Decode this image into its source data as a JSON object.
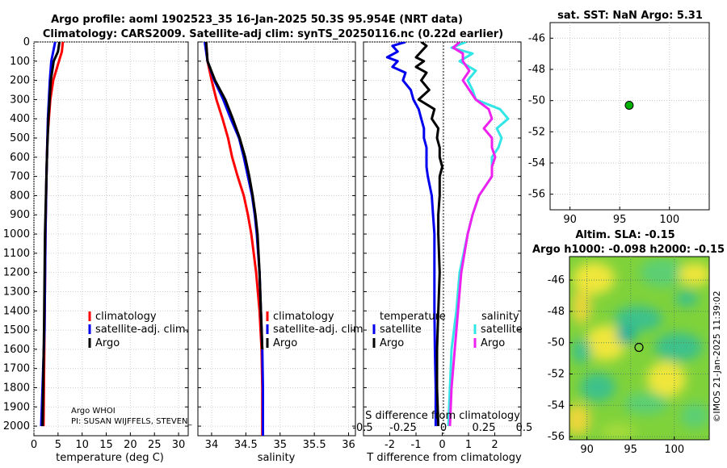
{
  "header": {
    "title_line1": "Argo profile: aoml 1902523_35 16-Jan-2025 50.3S 95.954E (NRT data)",
    "title_line2": "Climatology: CARS2009. Satellite-adj clim: synTS_20250116.nc (0.22d earlier)"
  },
  "sst_title": "sat. SST: NaN Argo: 5.31",
  "altim_title1": "Altim. SLA: -0.15",
  "altim_title2": "Argo h1000: -0.098 h2000: -0.15",
  "credit": "©IMOS 21-Jan-2025 11:39:02",
  "argo_info": {
    "line1": "Argo WHOI",
    "line2": "PI: SUSAN WIJFFELS, STEVEN_"
  },
  "legends": {
    "climatology": "climatology",
    "satellite_adj": "satellite-adj. clim.",
    "argo": "Argo",
    "temperature_hdr": "temperature",
    "salinity_hdr": "salinity",
    "satellite": "satellite"
  },
  "colors": {
    "climatology": "#ff0000",
    "satellite": "#0000ee",
    "argo": "#000000",
    "sal_satellite": "#33e6e6",
    "sal_argo": "#ee22ee",
    "argo_dot": "#00b000"
  },
  "chart_data": [
    {
      "type": "line",
      "name": "temperature",
      "xlabel": "temperature (deg C)",
      "ylabel": "",
      "xlim": [
        0,
        32
      ],
      "ylim": [
        2050,
        0
      ],
      "xticks": [
        0,
        5,
        10,
        15,
        20,
        25,
        30
      ],
      "yticks": [
        0,
        100,
        200,
        300,
        400,
        500,
        600,
        700,
        800,
        900,
        1000,
        1100,
        1200,
        1300,
        1400,
        1500,
        1600,
        1700,
        1800,
        1900,
        2000
      ],
      "series": [
        {
          "name": "climatology",
          "depth": [
            0,
            50,
            100,
            200,
            300,
            400,
            500,
            700,
            1000,
            1500,
            2000
          ],
          "values": [
            6.0,
            5.8,
            5.2,
            4.0,
            3.4,
            3.1,
            2.8,
            2.6,
            2.4,
            2.2,
            2.0
          ]
        },
        {
          "name": "satellite-adj. clim.",
          "depth": [
            0,
            50,
            100,
            200,
            400,
            700,
            1000,
            1500,
            2000
          ],
          "values": [
            4.4,
            4.0,
            3.6,
            3.3,
            2.9,
            2.6,
            2.4,
            2.2,
            1.5
          ]
        },
        {
          "name": "Argo",
          "depth": [
            0,
            50,
            100,
            200,
            400,
            600,
            800,
            1000,
            1500,
            2000
          ],
          "values": [
            5.3,
            5.0,
            4.1,
            3.5,
            3.0,
            2.7,
            2.5,
            2.3,
            2.1,
            1.8
          ]
        }
      ]
    },
    {
      "type": "line",
      "name": "salinity",
      "xlabel": "salinity",
      "xlim": [
        33.8,
        36.1
      ],
      "ylim": [
        2050,
        0
      ],
      "xticks": [
        34,
        34.5,
        35,
        35.5,
        36
      ],
      "series": [
        {
          "name": "climatology",
          "depth": [
            0,
            100,
            200,
            300,
            400,
            500,
            600,
            700,
            800,
            900,
            1000,
            1200,
            1400,
            1600,
            1800,
            2050
          ],
          "values": [
            33.92,
            33.94,
            34.0,
            34.07,
            34.16,
            34.24,
            34.3,
            34.38,
            34.47,
            34.53,
            34.58,
            34.65,
            34.7,
            34.73,
            34.74,
            34.74
          ]
        },
        {
          "name": "satellite-adj. clim.",
          "depth": [
            0,
            100,
            200,
            300,
            400,
            500,
            600,
            700,
            800,
            900,
            1000,
            1200,
            1400,
            1600,
            1800,
            2050
          ],
          "values": [
            33.9,
            33.94,
            34.04,
            34.17,
            34.28,
            34.4,
            34.47,
            34.53,
            34.59,
            34.63,
            34.66,
            34.7,
            34.72,
            34.74,
            34.75,
            34.75
          ]
        },
        {
          "name": "Argo",
          "depth": [
            0,
            100,
            200,
            300,
            400,
            500,
            600,
            700,
            800,
            900,
            1000,
            1200,
            1400,
            1600
          ],
          "values": [
            33.92,
            33.94,
            34.05,
            34.2,
            34.31,
            34.41,
            34.49,
            34.55,
            34.6,
            34.64,
            34.67,
            34.7,
            34.72,
            34.74
          ]
        }
      ]
    },
    {
      "type": "line",
      "name": "difference",
      "xlabel": "T difference from climatology",
      "xlabel_top": "S difference from climatology",
      "xlim": [
        -3,
        3
      ],
      "ylim": [
        2050,
        0
      ],
      "xticks": [
        -2,
        -1,
        0,
        1,
        2
      ],
      "sal_xticks": [
        -0.5,
        -0.25,
        0,
        0.25,
        0.5
      ],
      "series": [
        {
          "name": "temperature satellite",
          "depth": [
            0,
            20,
            50,
            80,
            100,
            130,
            160,
            200,
            250,
            300,
            350,
            400,
            450,
            500,
            550,
            600,
            650,
            700,
            800,
            900,
            1000,
            1200,
            1400,
            1600,
            1800,
            2000
          ],
          "values": [
            -1.4,
            -1.9,
            -1.7,
            -2.1,
            -1.7,
            -1.9,
            -1.4,
            -1.5,
            -1.2,
            -1.1,
            -0.9,
            -0.8,
            -0.7,
            -0.7,
            -0.6,
            -0.6,
            -0.6,
            -0.55,
            -0.4,
            -0.35,
            -0.3,
            -0.3,
            -0.3,
            -0.28,
            -0.25,
            -0.25
          ]
        },
        {
          "name": "temperature Argo",
          "depth": [
            0,
            20,
            50,
            80,
            100,
            130,
            160,
            200,
            250,
            300,
            350,
            400,
            450,
            500,
            550,
            600,
            650,
            700,
            800,
            900,
            1000,
            1200,
            1400,
            1600,
            1800,
            2000
          ],
          "values": [
            -0.8,
            -0.6,
            -0.8,
            -1.0,
            -0.7,
            -1.0,
            -0.6,
            -0.8,
            -0.5,
            -0.9,
            -0.3,
            -0.4,
            -0.15,
            -0.2,
            -0.1,
            -0.1,
            0.0,
            -0.1,
            -0.1,
            -0.15,
            -0.15,
            -0.1,
            -0.15,
            -0.2,
            -0.2,
            -0.15
          ]
        },
        {
          "name": "salinity satellite",
          "depth": [
            0,
            30,
            60,
            100,
            150,
            200,
            250,
            300,
            350,
            400,
            450,
            500,
            550,
            600,
            650,
            700,
            800,
            900,
            1000,
            1200,
            1400,
            1600,
            1800,
            2000
          ],
          "values": [
            0.14,
            0.05,
            0.18,
            0.1,
            0.2,
            0.15,
            0.18,
            0.2,
            0.35,
            0.4,
            0.33,
            0.36,
            0.34,
            0.3,
            0.3,
            0.3,
            0.22,
            0.18,
            0.15,
            0.1,
            0.08,
            0.05,
            0.04,
            0.03
          ]
        },
        {
          "name": "salinity Argo",
          "depth": [
            0,
            30,
            60,
            100,
            150,
            200,
            250,
            300,
            350,
            400,
            450,
            500,
            550,
            600,
            650,
            700,
            800,
            900,
            1000,
            1200,
            1400,
            1600,
            1800,
            2000
          ],
          "values": [
            0.1,
            0.06,
            0.12,
            0.12,
            0.16,
            0.12,
            0.16,
            0.2,
            0.28,
            0.3,
            0.25,
            0.3,
            0.3,
            0.32,
            0.3,
            0.3,
            0.22,
            0.18,
            0.15,
            0.11,
            0.09,
            0.07,
            0.05,
            0.04
          ]
        }
      ]
    },
    {
      "type": "scatter",
      "name": "sst_map",
      "xlim": [
        88,
        104
      ],
      "ylim": [
        -57,
        -45
      ],
      "xticks": [
        90,
        95,
        100
      ],
      "yticks": [
        -46,
        -48,
        -50,
        -52,
        -54,
        -56
      ],
      "points": [
        {
          "lon": 95.954,
          "lat": -50.3
        }
      ]
    },
    {
      "type": "heatmap",
      "name": "sla_map",
      "xlim": [
        88,
        104
      ],
      "ylim": [
        -56.2,
        -44.5
      ],
      "xticks": [
        90,
        95,
        100
      ],
      "yticks": [
        -46,
        -48,
        -50,
        -52,
        -54,
        -56
      ],
      "points": [
        {
          "lon": 95.954,
          "lat": -50.3
        }
      ]
    }
  ]
}
